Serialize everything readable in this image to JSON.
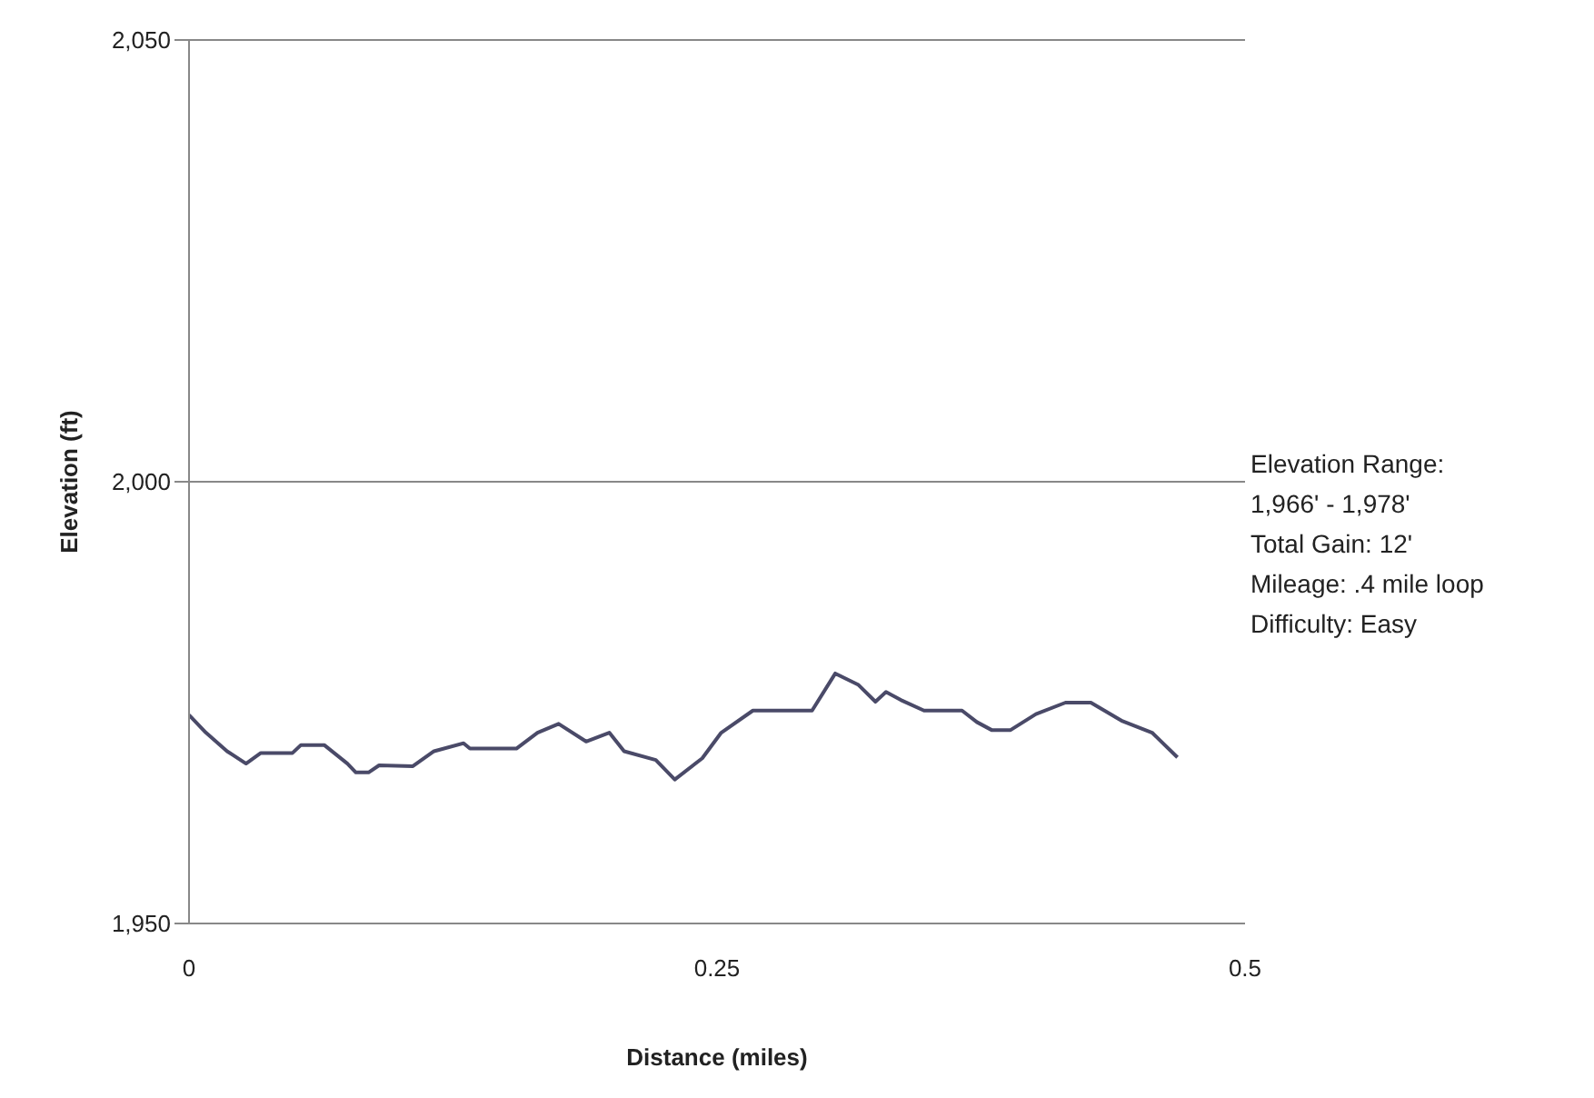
{
  "chart_data": {
    "type": "line",
    "xlabel": "Distance (miles)",
    "ylabel": "Elevation (ft)",
    "annotations": [
      "Elevation Range:",
      "1,966' - 1,978'",
      "Total Gain: 12'",
      "Mileage: .4 mile loop",
      "Difficulty: Easy"
    ],
    "series": [
      {
        "color": "#4a4a68",
        "x": [
          0,
          0.008,
          0.018,
          0.027,
          0.034,
          0.049,
          0.053,
          0.064,
          0.075,
          0.079,
          0.085,
          0.09,
          0.106,
          0.116,
          0.13,
          0.133,
          0.155,
          0.165,
          0.175,
          0.188,
          0.199,
          0.206,
          0.221,
          0.23,
          0.243,
          0.252,
          0.267,
          0.295,
          0.306,
          0.317,
          0.325,
          0.33,
          0.337,
          0.348,
          0.366,
          0.373,
          0.38,
          0.389,
          0.401,
          0.415,
          0.427,
          0.442,
          0.456,
          0.468
        ],
        "values": [
          1973.6,
          1971.6,
          1969.5,
          1968.1,
          1969.3,
          1969.3,
          1970.2,
          1970.2,
          1968.1,
          1967.1,
          1967.1,
          1967.9,
          1967.8,
          1969.5,
          1970.4,
          1969.8,
          1969.8,
          1971.6,
          1972.6,
          1970.6,
          1971.6,
          1969.5,
          1968.5,
          1966.3,
          1968.7,
          1971.6,
          1974.1,
          1974.1,
          1978.3,
          1977.0,
          1975.1,
          1976.2,
          1975.3,
          1974.1,
          1974.1,
          1972.8,
          1971.9,
          1971.9,
          1973.7,
          1975.0,
          1975.0,
          1972.9,
          1971.6,
          1968.8
        ]
      }
    ],
    "xlim": [
      0,
      0.5
    ],
    "xticks": [
      0,
      0.25,
      0.5
    ],
    "ylim": [
      1950,
      2050
    ],
    "yticks": [
      {
        "value": 1950,
        "label": "1,950"
      },
      {
        "value": 2000,
        "label": "2,000"
      },
      {
        "value": 2050,
        "label": "2,050"
      }
    ],
    "grid": "y",
    "legend": false,
    "marker": "none",
    "line_style": "solid"
  }
}
